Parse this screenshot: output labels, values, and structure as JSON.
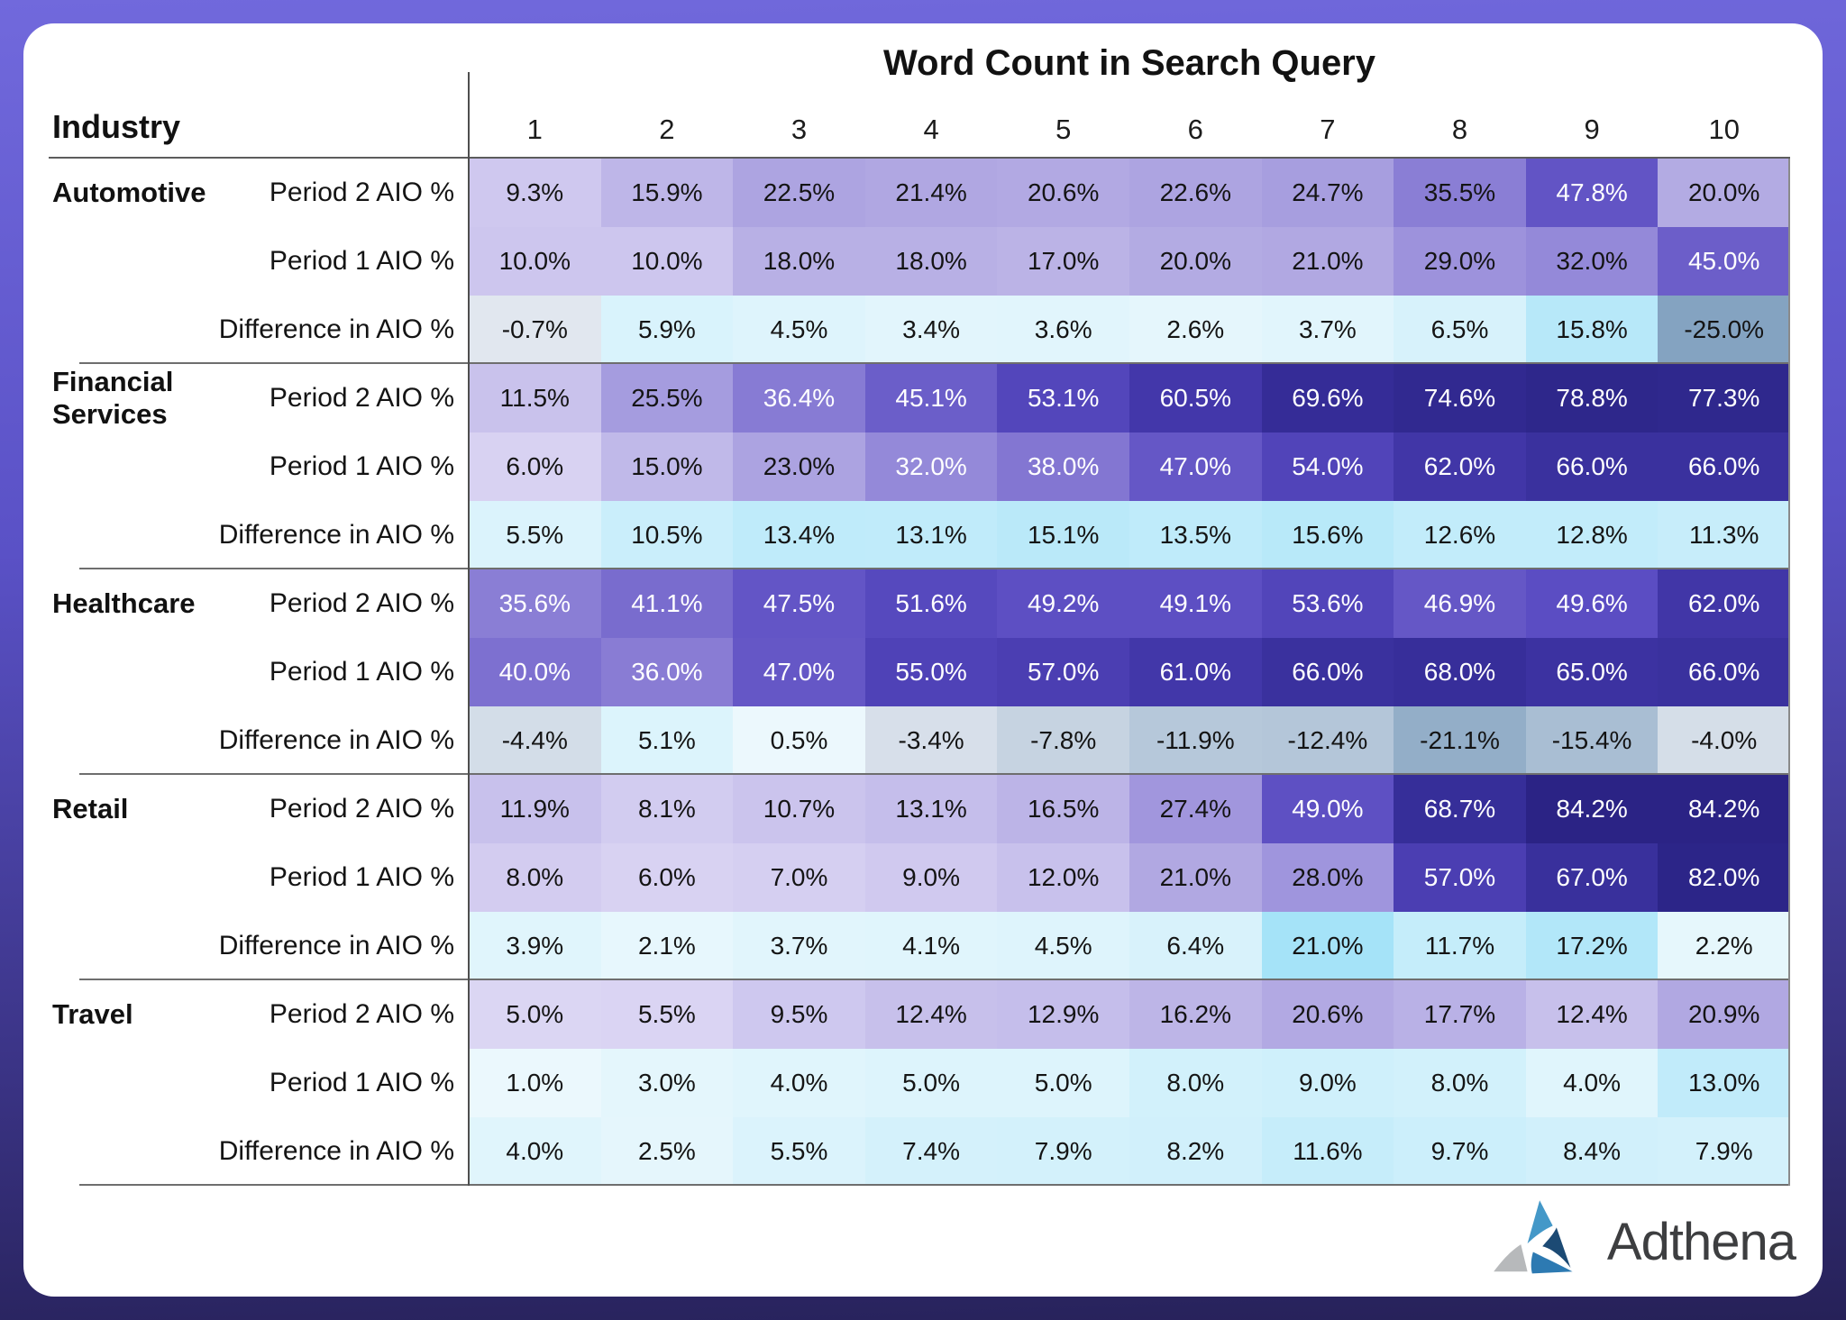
{
  "header": {
    "title": "Word Count in Search Query",
    "industry_label": "Industry"
  },
  "logo": {
    "text": "Adthena"
  },
  "palette": {
    "frame_top": "#7169dc",
    "frame_bottom": "#262158",
    "card_bg": "#ffffff",
    "text_dark": "#141414",
    "text_light": "#ffffff",
    "purple_scale": [
      {
        "v": 0,
        "c": "#e9e5f8"
      },
      {
        "v": 10,
        "c": "#cdc6ee"
      },
      {
        "v": 20,
        "c": "#b3abe3"
      },
      {
        "v": 30,
        "c": "#9a8fdb"
      },
      {
        "v": 40,
        "c": "#7d70d0"
      },
      {
        "v": 50,
        "c": "#5a4cc2"
      },
      {
        "v": 60,
        "c": "#4438ab"
      },
      {
        "v": 70,
        "c": "#342c96"
      },
      {
        "v": 85,
        "c": "#2a2384"
      }
    ],
    "cyan_scale": [
      {
        "v": 0,
        "c": "#eef9fd"
      },
      {
        "v": 21,
        "c": "#a5e3f8"
      }
    ],
    "negative_scale": [
      {
        "v": 0,
        "c": "#e4e9f0"
      },
      {
        "v": 25,
        "c": "#84a3c1"
      }
    ],
    "logo_colors": {
      "light_blue": "#4498c8",
      "navy": "#1c4a74",
      "mid_blue": "#2d7ab2",
      "gray": "#b7b9bb",
      "text": "#3d3e40"
    }
  },
  "chart_data": {
    "type": "heatmap",
    "title": "Word Count in Search Query",
    "row_axis": "Industry",
    "columns": [
      "1",
      "2",
      "3",
      "4",
      "5",
      "6",
      "7",
      "8",
      "9",
      "10"
    ],
    "value_format": "percent_1dp",
    "white_text_threshold": 35.55,
    "white_text_overrides": [
      {
        "industry_index": 1,
        "row_index": 1,
        "col_index": 3
      }
    ],
    "industries": [
      {
        "name": "Automotive",
        "rows": [
          {
            "label": "Period 2 AIO %",
            "scale": "purple",
            "values": [
              9.3,
              15.9,
              22.5,
              21.4,
              20.6,
              22.6,
              24.7,
              35.5,
              47.8,
              20.0
            ]
          },
          {
            "label": "Period 1 AIO %",
            "scale": "purple",
            "values": [
              10.0,
              10.0,
              18.0,
              18.0,
              17.0,
              20.0,
              21.0,
              29.0,
              32.0,
              45.0
            ]
          },
          {
            "label": "Difference in AIO %",
            "scale": "diff",
            "values": [
              -0.7,
              5.9,
              4.5,
              3.4,
              3.6,
              2.6,
              3.7,
              6.5,
              15.8,
              -25.0
            ]
          }
        ]
      },
      {
        "name": "Financial Services",
        "rows": [
          {
            "label": "Period 2 AIO %",
            "scale": "purple",
            "values": [
              11.5,
              25.5,
              36.4,
              45.1,
              53.1,
              60.5,
              69.6,
              74.6,
              78.8,
              77.3
            ]
          },
          {
            "label": "Period 1 AIO %",
            "scale": "purple",
            "values": [
              6.0,
              15.0,
              23.0,
              32.0,
              38.0,
              47.0,
              54.0,
              62.0,
              66.0,
              66.0
            ]
          },
          {
            "label": "Difference in AIO %",
            "scale": "diff",
            "values": [
              5.5,
              10.5,
              13.4,
              13.1,
              15.1,
              13.5,
              15.6,
              12.6,
              12.8,
              11.3
            ]
          }
        ]
      },
      {
        "name": "Healthcare",
        "rows": [
          {
            "label": "Period 2 AIO %",
            "scale": "purple",
            "values": [
              35.6,
              41.1,
              47.5,
              51.6,
              49.2,
              49.1,
              53.6,
              46.9,
              49.6,
              62.0
            ]
          },
          {
            "label": "Period 1 AIO %",
            "scale": "purple",
            "values": [
              40.0,
              36.0,
              47.0,
              55.0,
              57.0,
              61.0,
              66.0,
              68.0,
              65.0,
              66.0
            ]
          },
          {
            "label": "Difference in AIO %",
            "scale": "diff",
            "values": [
              -4.4,
              5.1,
              0.5,
              -3.4,
              -7.8,
              -11.9,
              -12.4,
              -21.1,
              -15.4,
              -4.0
            ]
          }
        ]
      },
      {
        "name": "Retail",
        "rows": [
          {
            "label": "Period 2 AIO %",
            "scale": "purple",
            "values": [
              11.9,
              8.1,
              10.7,
              13.1,
              16.5,
              27.4,
              49.0,
              68.7,
              84.2,
              84.2
            ]
          },
          {
            "label": "Period 1 AIO %",
            "scale": "purple",
            "values": [
              8.0,
              6.0,
              7.0,
              9.0,
              12.0,
              21.0,
              28.0,
              57.0,
              67.0,
              82.0
            ]
          },
          {
            "label": "Difference in AIO %",
            "scale": "diff",
            "values": [
              3.9,
              2.1,
              3.7,
              4.1,
              4.5,
              6.4,
              21.0,
              11.7,
              17.2,
              2.2
            ]
          }
        ]
      },
      {
        "name": "Travel",
        "rows": [
          {
            "label": "Period 2 AIO %",
            "scale": "purple",
            "values": [
              5.0,
              5.5,
              9.5,
              12.4,
              12.9,
              16.2,
              20.6,
              17.7,
              12.4,
              20.9
            ]
          },
          {
            "label": "Period 1 AIO %",
            "scale": "cyan",
            "values": [
              1.0,
              3.0,
              4.0,
              5.0,
              5.0,
              8.0,
              9.0,
              8.0,
              4.0,
              13.0
            ]
          },
          {
            "label": "Difference in AIO %",
            "scale": "diff",
            "values": [
              4.0,
              2.5,
              5.5,
              7.4,
              7.9,
              8.2,
              11.6,
              9.7,
              8.4,
              7.9
            ]
          }
        ]
      }
    ]
  }
}
